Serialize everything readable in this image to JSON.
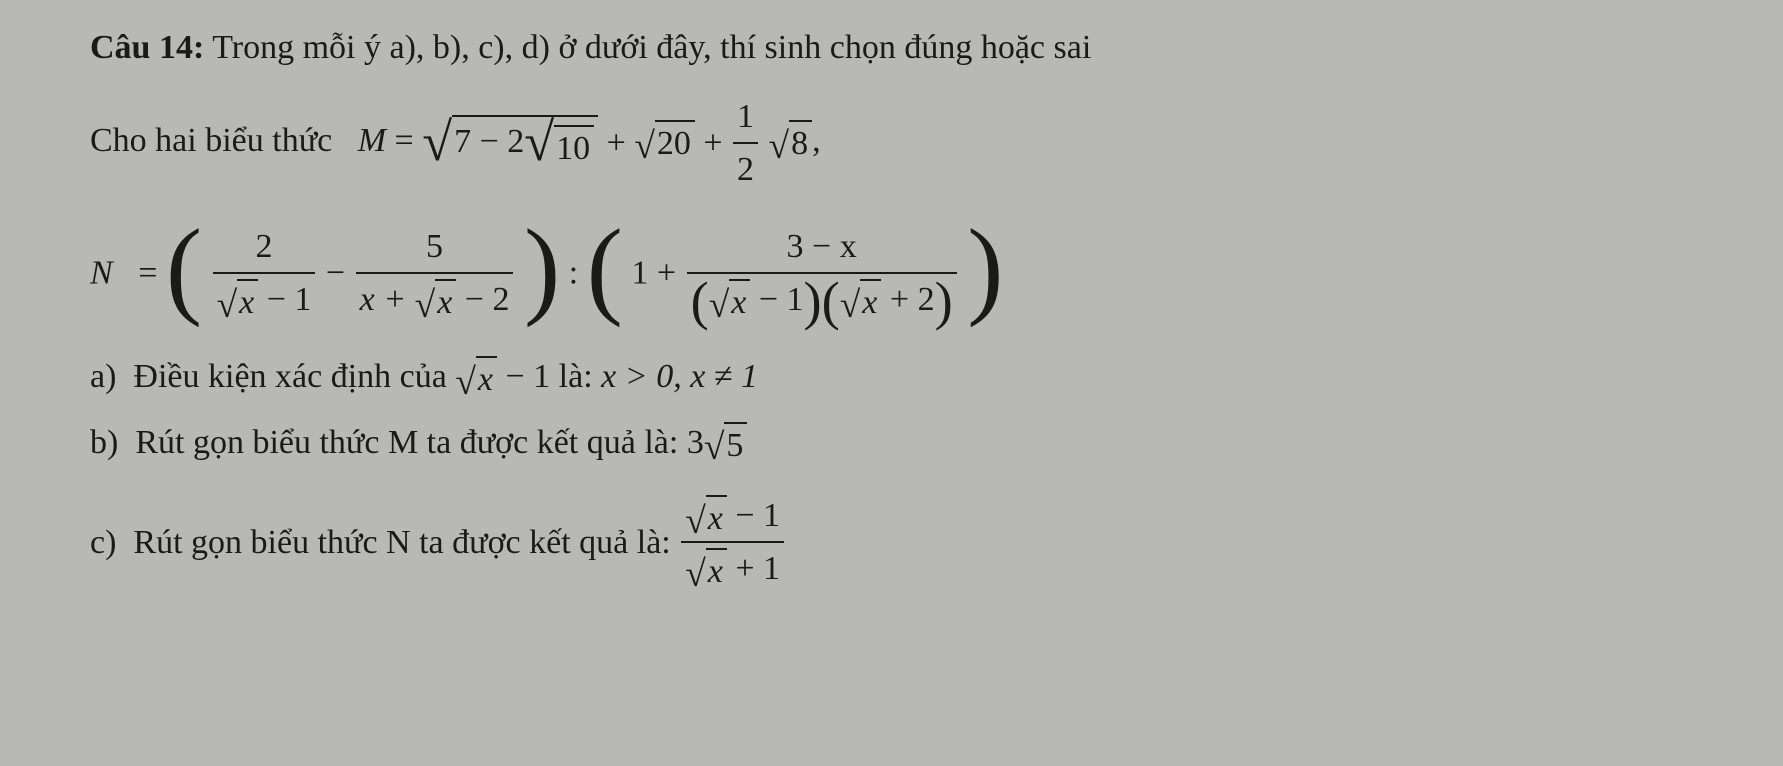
{
  "text_color": "#1a1a1a",
  "background_color": "#b8b9b6",
  "font_family": "Times New Roman",
  "font_size_pt": 26,
  "question": {
    "label": "Câu 14:",
    "prompt": "Trong mỗi ý a), b), c), d) ở dưới đây, thí sinh chọn đúng hoặc sai"
  },
  "given": {
    "intro": "Cho hai biểu thức",
    "M": {
      "symbol": "M",
      "eq": "=",
      "sqrt_outer_minus": "7 − 2",
      "sqrt_inner": "10",
      "plus1": "+",
      "sqrt2": "20",
      "plus2": "+",
      "half_num": "1",
      "half_den": "2",
      "sqrt3": "8",
      "comma": ","
    },
    "N": {
      "symbol": "N",
      "eq": "=",
      "t1_num": "2",
      "t1_den_sqrt": "x",
      "t1_den_tail": " − 1",
      "minus": "−",
      "t2_num": "5",
      "t2_den_lead": "x + ",
      "t2_den_sqrt": "x",
      "t2_den_tail": " − 2",
      "colon": ":",
      "one_plus": "1 +",
      "rhs_num": "3 − x",
      "rhs_den_p1_sqrt": "x",
      "rhs_den_p1_tail": " − 1",
      "rhs_den_p2_sqrt": "x",
      "rhs_den_p2_tail": " + 2"
    }
  },
  "items": {
    "a": {
      "label": "a)",
      "text_lead": "Điều kiện xác định của ",
      "sqrt_arg": "x",
      "tail1": " − 1",
      "text_mid": " là: ",
      "cond": "x > 0, x ≠ 1"
    },
    "b": {
      "label": "b)",
      "text": "Rút gọn biểu thức M ta được kết quả là: ",
      "coef": "3",
      "sqrt_arg": "5"
    },
    "c": {
      "label": "c)",
      "text": "Rút gọn biểu thức N ta được kết quả là: ",
      "num_sqrt": "x",
      "num_tail": " − 1",
      "den_sqrt": "x",
      "den_tail": " + 1"
    }
  }
}
